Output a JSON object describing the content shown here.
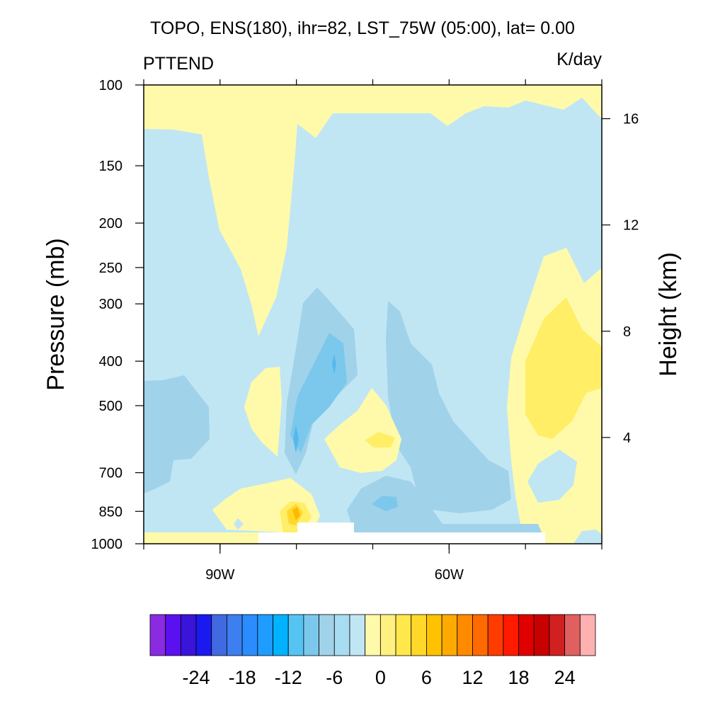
{
  "chart_data": {
    "type": "heatmap",
    "title": "TOPO, ENS(180), ihr=82, LST_75W (05:00), lat= 0.00",
    "variable": "PTTEND",
    "units": "K/day",
    "ylabel": "Pressure (mb)",
    "ylabel_right": "Height (km)",
    "xlabel": "",
    "x_range": [
      -100,
      -40
    ],
    "y_range_mb": [
      1000,
      100
    ],
    "y_scale": "log",
    "x_ticks": [
      {
        "value": -90,
        "label": "90W"
      },
      {
        "value": -60,
        "label": "60W"
      }
    ],
    "x_minor_ticks": [
      -100,
      -90,
      -80,
      -70,
      -60,
      -50,
      -40
    ],
    "y_ticks": [
      {
        "value": 100,
        "label": "100"
      },
      {
        "value": 150,
        "label": "150"
      },
      {
        "value": 200,
        "label": "200"
      },
      {
        "value": 250,
        "label": "250"
      },
      {
        "value": 300,
        "label": "300"
      },
      {
        "value": 400,
        "label": "400"
      },
      {
        "value": 500,
        "label": "500"
      },
      {
        "value": 700,
        "label": "700"
      },
      {
        "value": 850,
        "label": "850"
      },
      {
        "value": 1000,
        "label": "1000"
      }
    ],
    "height_ticks": [
      {
        "value": 4,
        "label": "4"
      },
      {
        "value": 8,
        "label": "8"
      },
      {
        "value": 12,
        "label": "12"
      },
      {
        "value": 16,
        "label": "16"
      }
    ],
    "colorbar": {
      "levels": [
        -28,
        -26,
        -24,
        -22,
        -20,
        -18,
        -16,
        -14,
        -12,
        -10,
        -8,
        -6,
        -4,
        -2,
        0,
        2,
        4,
        6,
        8,
        10,
        12,
        14,
        16,
        18,
        20,
        22,
        24,
        26,
        28
      ],
      "labels": [
        {
          "value": -24,
          "label": "-24"
        },
        {
          "value": -18,
          "label": "-18"
        },
        {
          "value": -12,
          "label": "-12"
        },
        {
          "value": -6,
          "label": "-6"
        },
        {
          "value": 0,
          "label": "0"
        },
        {
          "value": 6,
          "label": "6"
        },
        {
          "value": 12,
          "label": "12"
        },
        {
          "value": 18,
          "label": "18"
        },
        {
          "value": 24,
          "label": "24"
        }
      ],
      "colors": [
        "#8a2be2",
        "#5b10f0",
        "#3a14d8",
        "#1a1af0",
        "#4169e1",
        "#3d7ef0",
        "#2a8cff",
        "#1e9cff",
        "#00b2ff",
        "#56c4f2",
        "#7bc8ec",
        "#a0d2ea",
        "#a8dcf0",
        "#c0e6f4",
        "#fffaaa",
        "#fff080",
        "#ffe84c",
        "#ffd82a",
        "#ffc200",
        "#ffaa00",
        "#ff8a00",
        "#ff6a00",
        "#ff3c00",
        "#ff1a00",
        "#e00000",
        "#c80000",
        "#d02020",
        "#e06060",
        "#ffb0b0"
      ]
    },
    "field_colors": {
      "pos_0_2": "#fffaaa",
      "pos_2_4": "#ffee66",
      "pos_4_6": "#ffd82a",
      "pos_6_8": "#ffb800",
      "neg_0_2": "#c0e6f4",
      "neg_2_4": "#a0d2ea",
      "neg_4_6": "#7bc8ec",
      "neg_6_8": "#56b8ec",
      "missing": "#ffffff"
    }
  }
}
